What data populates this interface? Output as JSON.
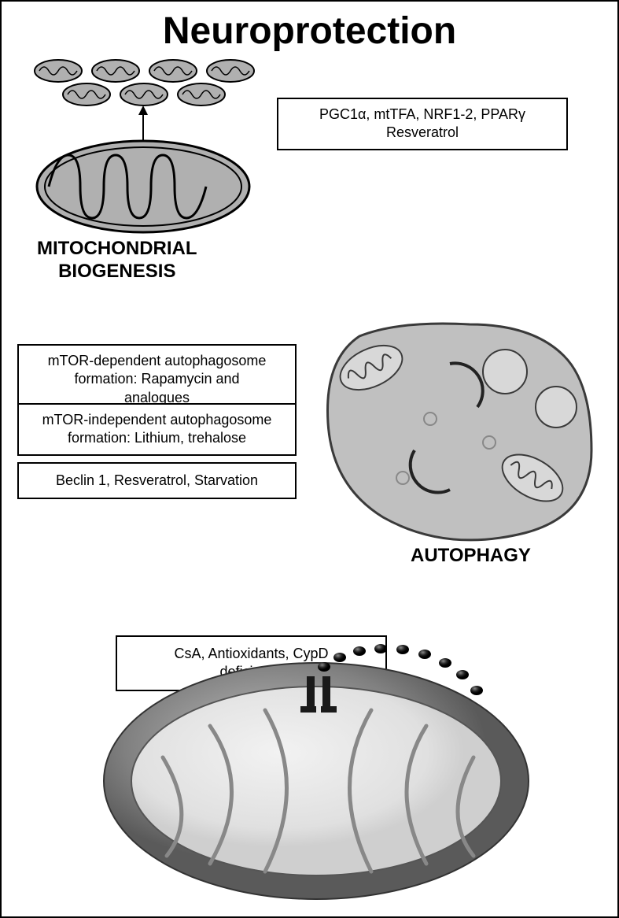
{
  "title": "Neuroprotection",
  "labels": {
    "biogenesis": "MITOCHONDRIAL\nBIOGENESIS",
    "autophagy": "AUTOPHAGY",
    "mptp": "mPTP"
  },
  "boxes": {
    "biogenesis": "PGC1α, mtTFA, NRF1-2, PPARγ\nResveratrol",
    "mtor_dep": "mTOR-dependent autophagosome\nformation: Rapamycin and\nanalogues",
    "mtor_indep": "mTOR-independent autophagosome\nformation: Lithium, trehalose",
    "beclin": "Beclin 1, Resveratrol, Starvation",
    "mptp": "CsA, Antioxidants, CypD\ndeficiency"
  },
  "colors": {
    "background": "#ffffff",
    "border": "#000000",
    "text": "#000000",
    "mito_fill": "#b0b0b0",
    "mito_stroke": "#000000",
    "auto_fill": "#c0c0c0",
    "auto_stroke": "#3a3a3a",
    "auto_light": "#d8d8d8",
    "mptp_outer": "#7a7a7a",
    "mptp_inner": "#e8e8e8",
    "dot_dark": "#1a1a1a"
  },
  "typography": {
    "title_fontsize": 48,
    "label_fontsize": 24,
    "box_fontsize": 18,
    "mptp_fontsize": 20
  },
  "diagram": {
    "type": "infographic",
    "sections": [
      "mitochondrial_biogenesis",
      "autophagy",
      "mptp"
    ]
  }
}
